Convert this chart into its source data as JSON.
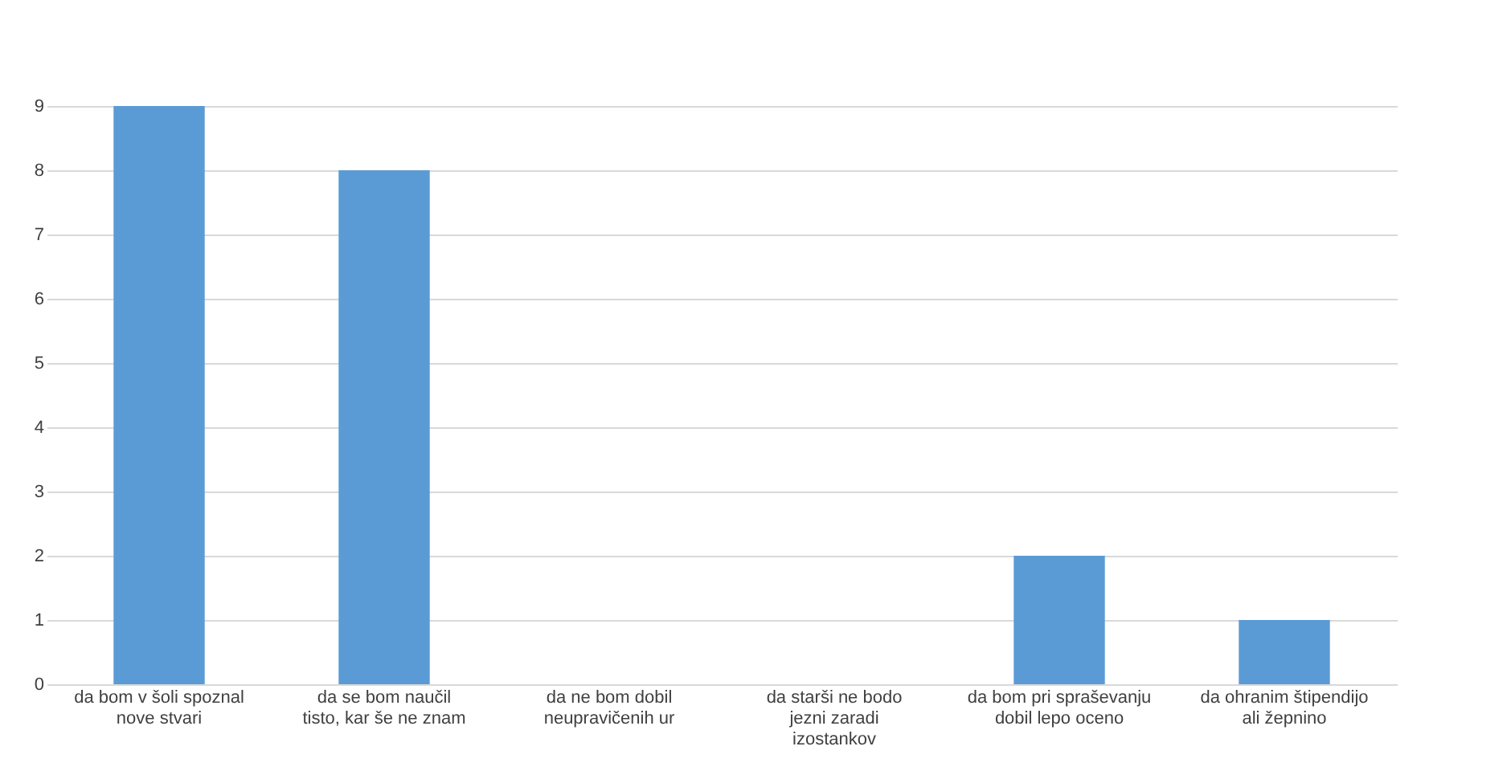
{
  "chart_data": {
    "type": "bar",
    "categories": [
      "da bom v šoli spoznal nove stvari",
      "da se bom naučil tisto, kar še ne znam",
      "da ne bom dobil neupravičenih ur",
      "da starši ne bodo jezni zaradi izostankov",
      "da bom pri spraševanju dobil lepo oceno",
      "da ohranim štipendijo ali žepnino"
    ],
    "values": [
      9,
      8,
      0,
      0,
      2,
      1
    ],
    "color": "#5b9bd5",
    "ylim": [
      0,
      9
    ],
    "yticks": [
      0,
      1,
      2,
      3,
      4,
      5,
      6,
      7,
      8,
      9
    ],
    "grid": "y"
  }
}
